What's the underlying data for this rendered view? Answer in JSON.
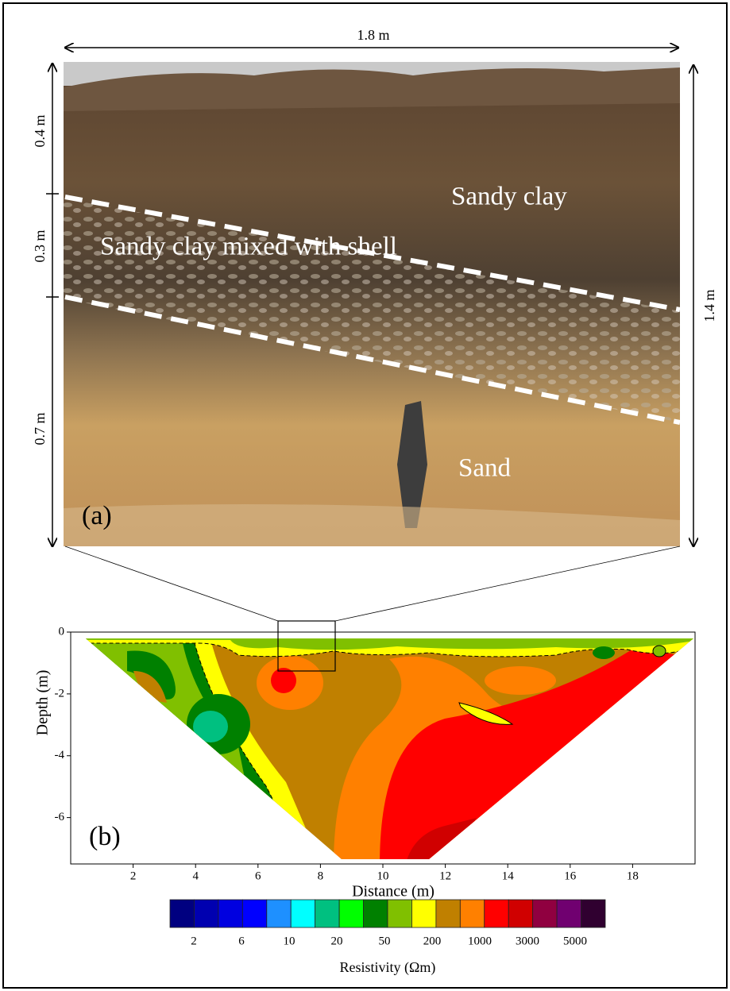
{
  "photo": {
    "width_label": "1.8 m",
    "height_label": "1.4 m",
    "layer_labels": [
      "0.4 m",
      "0.3 m",
      "0.7 m"
    ],
    "units": [
      "Sandy clay",
      "Sandy clay mixed with shell",
      "Sand"
    ],
    "panel": "(a)"
  },
  "section": {
    "panel": "(b)",
    "xlabel": "Distance (m)",
    "ylabel": "Depth (m)",
    "xlim": [
      0,
      20
    ],
    "ylim": [
      -7.5,
      0
    ],
    "xticks": [
      2,
      4,
      6,
      8,
      10,
      12,
      14,
      16,
      18
    ],
    "yticks": [
      0,
      -2,
      -4,
      -6
    ]
  },
  "colorbar": {
    "title": "Resistivity (Ωm)",
    "colors": [
      "#000080",
      "#0000b0",
      "#0000e0",
      "#0000ff",
      "#1e90ff",
      "#00ffff",
      "#00c080",
      "#00ff00",
      "#008000",
      "#80c000",
      "#ffff00",
      "#c08000",
      "#ff8000",
      "#ff0000",
      "#d00000",
      "#900040",
      "#700070",
      "#300030"
    ],
    "labels": [
      2,
      6,
      10,
      20,
      50,
      200,
      1000,
      3000,
      5000
    ]
  }
}
